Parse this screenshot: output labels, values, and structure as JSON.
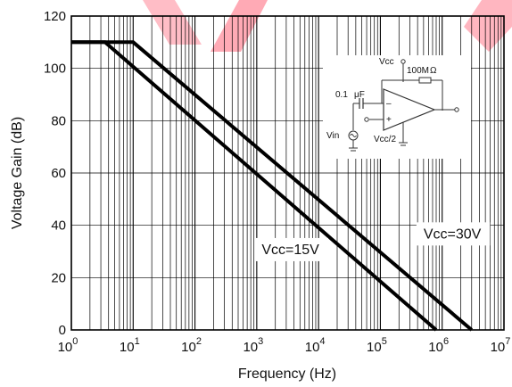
{
  "chart_data": {
    "type": "line",
    "title": "",
    "xlabel": "Frequency (Hz)",
    "ylabel": "Voltage Gain   (dB)",
    "x_scale": "log",
    "xlim": [
      1,
      10000000
    ],
    "ylim": [
      0,
      120
    ],
    "x_ticks": [
      {
        "base": "10",
        "exp": "0",
        "value": 1
      },
      {
        "base": "10",
        "exp": "1",
        "value": 10
      },
      {
        "base": "10",
        "exp": "2",
        "value": 100
      },
      {
        "base": "10",
        "exp": "3",
        "value": 1000
      },
      {
        "base": "10",
        "exp": "4",
        "value": 10000
      },
      {
        "base": "10",
        "exp": "5",
        "value": 100000
      },
      {
        "base": "10",
        "exp": "6",
        "value": 1000000
      },
      {
        "base": "10",
        "exp": "7",
        "value": 10000000
      }
    ],
    "y_ticks": [
      "0",
      "20",
      "40",
      "60",
      "80",
      "100",
      "120"
    ],
    "grid": true,
    "series": [
      {
        "name": "Vcc=15V",
        "x": [
          1,
          3.5,
          800000
        ],
        "y": [
          110,
          110,
          0
        ]
      },
      {
        "name": "Vcc=30V",
        "x": [
          1,
          10,
          3000000
        ],
        "y": [
          110,
          110,
          0
        ]
      }
    ],
    "annotations": [
      {
        "text": "Vcc=15V",
        "x": 1200,
        "y": 29
      },
      {
        "text": "Vcc=30V",
        "x": 500000,
        "y": 35
      }
    ],
    "inset_circuit": {
      "labels": [
        "Vcc",
        "100M",
        "Ω",
        "0.1",
        "μF",
        "Vin",
        "Vcc/2",
        "–",
        "+"
      ]
    }
  }
}
